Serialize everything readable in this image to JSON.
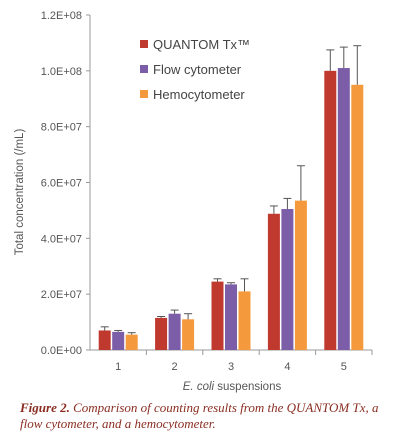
{
  "chart_data": {
    "type": "bar",
    "categories": [
      "1",
      "2",
      "3",
      "4",
      "5"
    ],
    "series": [
      {
        "name": "QUANTOM Tx™",
        "color": "#c0392f",
        "values": [
          7000000,
          11500000,
          24500000,
          48800000,
          100000000
        ],
        "errors": [
          1300000,
          500000,
          1000000,
          2800000,
          7500000
        ]
      },
      {
        "name": "Flow cytometer",
        "color": "#7b5ea7",
        "values": [
          6500000,
          13000000,
          23500000,
          50500000,
          101000000
        ],
        "errors": [
          500000,
          1300000,
          600000,
          3800000,
          7500000
        ]
      },
      {
        "name": "Hemocytometer",
        "color": "#f59a3c",
        "values": [
          5500000,
          11000000,
          21000000,
          53500000,
          95000000
        ],
        "errors": [
          700000,
          2000000,
          4500000,
          12500000,
          14000000
        ]
      }
    ],
    "ylim": [
      0,
      120000000
    ],
    "yticks": [
      "0.0E+00",
      "2.0E+07",
      "4.0E+07",
      "6.0E+07",
      "8.0E+07",
      "1.0E+08",
      "1.2E+08"
    ],
    "ylabel": "Total concentration (/mL)",
    "xlabel_italic": "E. coli",
    "xlabel_rest": " suspensions",
    "grid": false,
    "legend_position": "top-left inside plot"
  },
  "caption": {
    "label": "Figure 2.",
    "text": " Comparison of counting results from the QUANTOM Tx, a flow cytometer, and a hemocytometer."
  }
}
